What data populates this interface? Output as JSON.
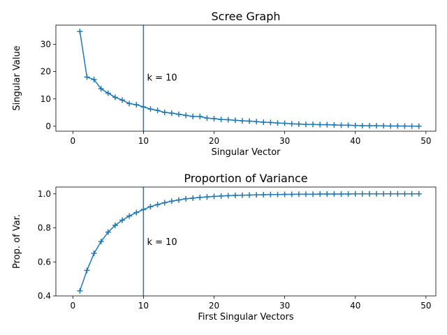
{
  "chart_data": [
    {
      "type": "line",
      "title": "Scree Graph",
      "xlabel": "Singular Vector",
      "ylabel": "Singular Value",
      "xlim": [
        -2.4,
        51.4
      ],
      "ylim": [
        -1.8,
        37.0
      ],
      "xticks": [
        0,
        10,
        20,
        30,
        40,
        50
      ],
      "yticks": [
        0,
        10,
        20,
        30
      ],
      "annotation": {
        "text": "k = 10",
        "x": 10.5,
        "y": 18.0
      },
      "vline_x": 10,
      "series": [
        {
          "marker": "+",
          "color": "#1f77b4",
          "x": [
            1,
            2,
            3,
            4,
            5,
            6,
            7,
            8,
            9,
            10,
            11,
            12,
            13,
            14,
            15,
            16,
            17,
            18,
            19,
            20,
            21,
            22,
            23,
            24,
            25,
            26,
            27,
            28,
            29,
            30,
            31,
            32,
            33,
            34,
            35,
            36,
            37,
            38,
            39,
            40,
            41,
            42,
            43,
            44,
            45,
            46,
            47,
            48,
            49
          ],
          "values": [
            34.7,
            18.0,
            17.1,
            13.7,
            12.1,
            10.6,
            9.6,
            8.3,
            7.9,
            7.1,
            6.3,
            5.8,
            5.1,
            4.8,
            4.4,
            4.0,
            3.6,
            3.6,
            3.0,
            2.8,
            2.5,
            2.4,
            2.2,
            2.0,
            1.9,
            1.7,
            1.5,
            1.4,
            1.2,
            1.1,
            0.9,
            0.8,
            0.7,
            0.7,
            0.6,
            0.6,
            0.5,
            0.4,
            0.4,
            0.3,
            0.2,
            0.2,
            0.2,
            0.15,
            0.1,
            0.1,
            0.08,
            0.05,
            0.03
          ]
        }
      ]
    },
    {
      "type": "line",
      "title": "Proportion of Variance",
      "xlabel": "First Singular Vectors",
      "ylabel": "Prop. of Var.",
      "xlim": [
        -2.4,
        51.4
      ],
      "ylim": [
        0.4,
        1.04
      ],
      "xticks": [
        0,
        10,
        20,
        30,
        40,
        50
      ],
      "yticks": [
        0.4,
        0.6,
        0.8,
        1.0
      ],
      "annotation": {
        "text": "k = 10",
        "x": 10.5,
        "y": 0.72
      },
      "vline_x": 10,
      "series": [
        {
          "marker": "+",
          "color": "#1f77b4",
          "x": [
            1,
            2,
            3,
            4,
            5,
            6,
            7,
            8,
            9,
            10,
            11,
            12,
            13,
            14,
            15,
            16,
            17,
            18,
            19,
            20,
            21,
            22,
            23,
            24,
            25,
            26,
            27,
            28,
            29,
            30,
            31,
            32,
            33,
            34,
            35,
            36,
            37,
            38,
            39,
            40,
            41,
            42,
            43,
            44,
            45,
            46,
            47,
            48,
            49
          ],
          "values": [
            0.43,
            0.55,
            0.65,
            0.72,
            0.775,
            0.815,
            0.845,
            0.87,
            0.89,
            0.908,
            0.925,
            0.937,
            0.948,
            0.957,
            0.964,
            0.971,
            0.975,
            0.979,
            0.982,
            0.985,
            0.987,
            0.989,
            0.991,
            0.992,
            0.993,
            0.994,
            0.995,
            0.996,
            0.996,
            0.997,
            0.997,
            0.998,
            0.998,
            0.998,
            0.999,
            0.999,
            0.999,
            0.999,
            0.999,
            1.0,
            1.0,
            1.0,
            1.0,
            1.0,
            1.0,
            1.0,
            1.0,
            1.0,
            1.0
          ]
        }
      ]
    }
  ]
}
